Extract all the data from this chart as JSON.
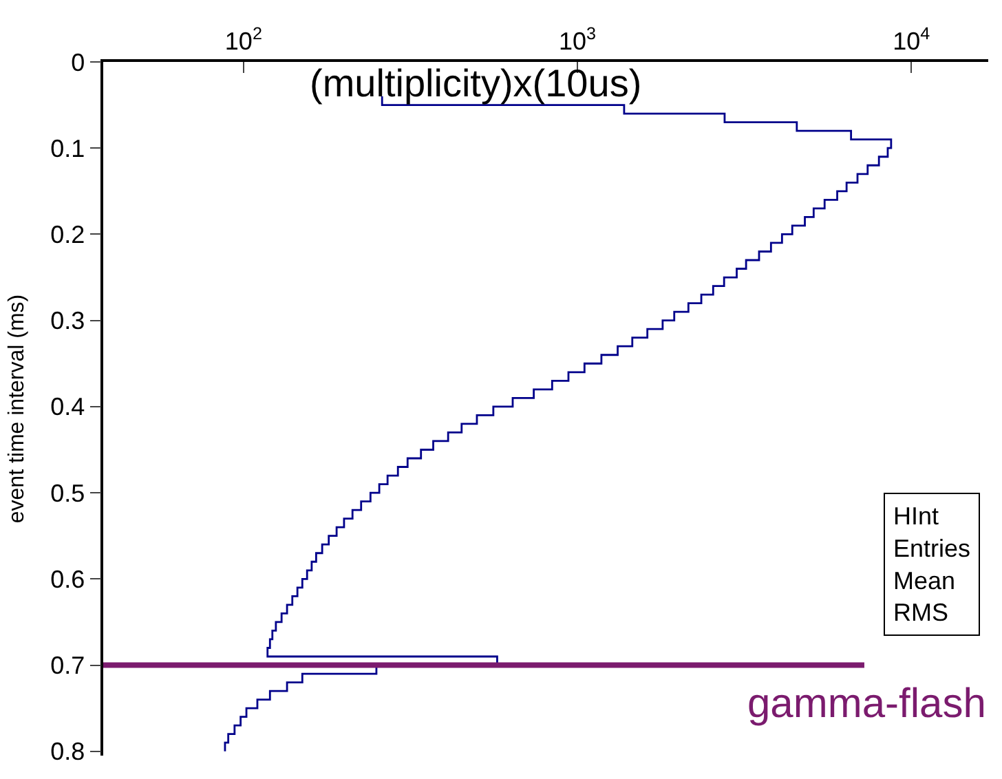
{
  "chart_data": {
    "type": "line",
    "log": "x",
    "marker": "none",
    "ylabel": "event time interval (ms)",
    "x": [
      260,
      260,
      1380,
      1380,
      2760,
      2760,
      4540,
      4540,
      6600,
      6600,
      8700,
      8700,
      8500,
      8500,
      8000,
      8000,
      7400,
      7400,
      6900,
      6900,
      6400,
      6400,
      6000,
      6000,
      5500,
      5500,
      5100,
      5100,
      4800,
      4800,
      4400,
      4400,
      4100,
      4100,
      3800,
      3800,
      3500,
      3500,
      3200,
      3200,
      3000,
      3000,
      2750,
      2750,
      2550,
      2550,
      2350,
      2350,
      2150,
      2150,
      1950,
      1950,
      1800,
      1800,
      1620,
      1620,
      1460,
      1460,
      1320,
      1320,
      1180,
      1180,
      1050,
      1050,
      940,
      940,
      840,
      840,
      740,
      740,
      640,
      640,
      560,
      560,
      500,
      500,
      450,
      450,
      410,
      410,
      370,
      370,
      340,
      340,
      310,
      310,
      290,
      290,
      270,
      270,
      255,
      255,
      240,
      240,
      225,
      225,
      212,
      212,
      200,
      200,
      190,
      190,
      180,
      180,
      172,
      172,
      165,
      165,
      160,
      160,
      155,
      155,
      150,
      150,
      145,
      145,
      140,
      140,
      135,
      135,
      130,
      130,
      125,
      125,
      122,
      122,
      120,
      120,
      118,
      118,
      575,
      575,
      250,
      250,
      150,
      150,
      135,
      135,
      120,
      120,
      110,
      110,
      102,
      102,
      98,
      98,
      94,
      94,
      90,
      90,
      88,
      88
    ],
    "values": [
      0.04,
      0.05,
      0.05,
      0.06,
      0.06,
      0.07,
      0.07,
      0.08,
      0.08,
      0.09,
      0.09,
      0.1,
      0.1,
      0.11,
      0.11,
      0.12,
      0.12,
      0.13,
      0.13,
      0.14,
      0.14,
      0.15,
      0.15,
      0.16,
      0.16,
      0.17,
      0.17,
      0.18,
      0.18,
      0.19,
      0.19,
      0.2,
      0.2,
      0.21,
      0.21,
      0.22,
      0.22,
      0.23,
      0.23,
      0.24,
      0.24,
      0.25,
      0.25,
      0.26,
      0.26,
      0.27,
      0.27,
      0.28,
      0.28,
      0.29,
      0.29,
      0.3,
      0.3,
      0.31,
      0.31,
      0.32,
      0.32,
      0.33,
      0.33,
      0.34,
      0.34,
      0.35,
      0.35,
      0.36,
      0.36,
      0.37,
      0.37,
      0.38,
      0.38,
      0.39,
      0.39,
      0.4,
      0.4,
      0.41,
      0.41,
      0.42,
      0.42,
      0.43,
      0.43,
      0.44,
      0.44,
      0.45,
      0.45,
      0.46,
      0.46,
      0.47,
      0.47,
      0.48,
      0.48,
      0.49,
      0.49,
      0.5,
      0.5,
      0.51,
      0.51,
      0.52,
      0.52,
      0.53,
      0.53,
      0.54,
      0.54,
      0.55,
      0.55,
      0.56,
      0.56,
      0.57,
      0.57,
      0.58,
      0.58,
      0.59,
      0.59,
      0.6,
      0.6,
      0.61,
      0.61,
      0.62,
      0.62,
      0.63,
      0.63,
      0.64,
      0.64,
      0.65,
      0.65,
      0.66,
      0.66,
      0.67,
      0.67,
      0.68,
      0.68,
      0.69,
      0.69,
      0.7,
      0.7,
      0.71,
      0.71,
      0.72,
      0.72,
      0.73,
      0.73,
      0.74,
      0.74,
      0.75,
      0.75,
      0.76,
      0.76,
      0.77,
      0.77,
      0.78,
      0.78,
      0.79,
      0.79,
      0.8
    ],
    "color": "#00008b",
    "xlim": [
      38,
      17000
    ],
    "xticks": [
      {
        "value": 100,
        "label": "10$^{2}$"
      },
      {
        "value": 1000,
        "label": "10$^{3}$"
      },
      {
        "value": 10000,
        "label": "10$^{4}$"
      }
    ],
    "ylim": [
      0.805,
      0
    ],
    "yticks": [
      0,
      0.1,
      0.2,
      0.3,
      0.4,
      0.5,
      0.6,
      0.7,
      0.8
    ],
    "ref_lines": [
      {
        "axis": "y",
        "value": 0.7,
        "label": "gamma-flash",
        "color": "#7b1b6e"
      }
    ],
    "annotations": [
      "(multiplicity)x(10us)",
      "HInt",
      "Entries",
      "Mean",
      "RMS"
    ]
  }
}
